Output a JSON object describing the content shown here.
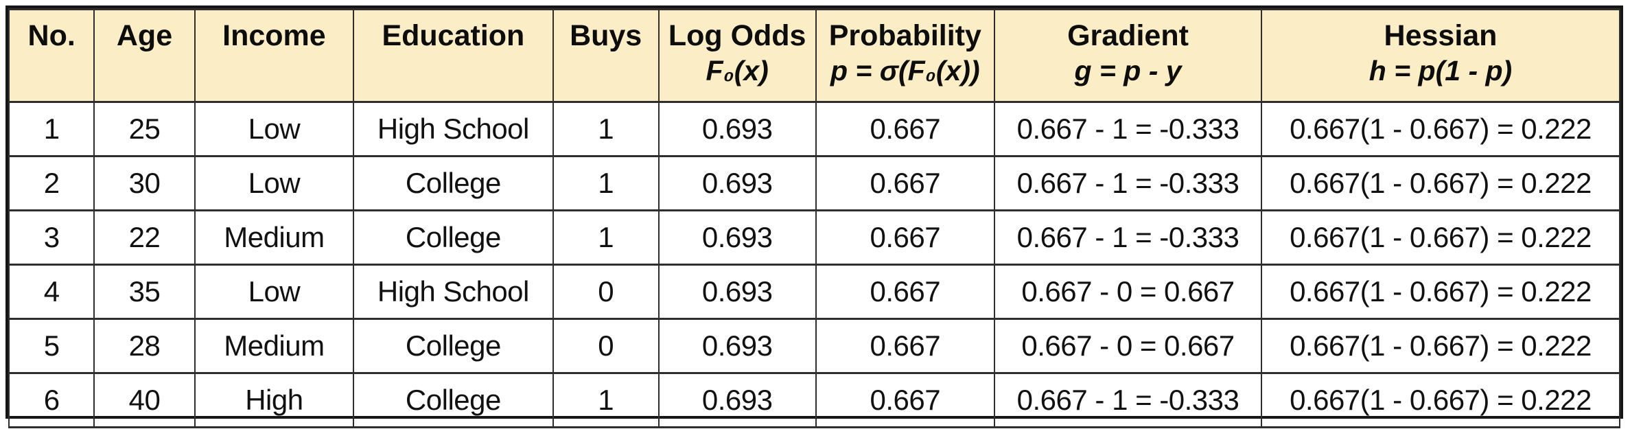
{
  "table": {
    "header_fill": "#FBEDC6",
    "border_color": "#2e2e2e",
    "columns": [
      {
        "label": "No.",
        "sub": ""
      },
      {
        "label": "Age",
        "sub": ""
      },
      {
        "label": "Income",
        "sub": ""
      },
      {
        "label": "Education",
        "sub": ""
      },
      {
        "label": "Buys",
        "sub": ""
      },
      {
        "label": "Log Odds",
        "sub": "F₀(x)"
      },
      {
        "label": "Probability",
        "sub": "p = σ(F₀(x))"
      },
      {
        "label": "Gradient",
        "sub": "g = p - y"
      },
      {
        "label": "Hessian",
        "sub": "h = p(1 - p)"
      }
    ],
    "rows": [
      {
        "cells": [
          "1",
          "25",
          "Low",
          "High School",
          "1",
          "0.693",
          "0.667",
          "0.667 - 1 = -0.333",
          "0.667(1 - 0.667) = 0.222"
        ]
      },
      {
        "cells": [
          "2",
          "30",
          "Low",
          "College",
          "1",
          "0.693",
          "0.667",
          "0.667 - 1 = -0.333",
          "0.667(1 - 0.667) = 0.222"
        ]
      },
      {
        "cells": [
          "3",
          "22",
          "Medium",
          "College",
          "1",
          "0.693",
          "0.667",
          "0.667 - 1 = -0.333",
          "0.667(1 - 0.667) = 0.222"
        ]
      },
      {
        "cells": [
          "4",
          "35",
          "Low",
          "High School",
          "0",
          "0.693",
          "0.667",
          "0.667 - 0 = 0.667",
          "0.667(1 - 0.667) = 0.222"
        ]
      },
      {
        "cells": [
          "5",
          "28",
          "Medium",
          "College",
          "0",
          "0.693",
          "0.667",
          "0.667 - 0 = 0.667",
          "0.667(1 - 0.667) = 0.222"
        ]
      },
      {
        "cells": [
          "6",
          "40",
          "High",
          "College",
          "1",
          "0.693",
          "0.667",
          "0.667 - 1 = -0.333",
          "0.667(1 - 0.667) = 0.222"
        ]
      }
    ]
  }
}
